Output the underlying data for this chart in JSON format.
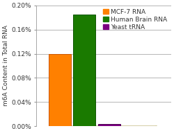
{
  "categories": [
    "MCF-7 RNA",
    "Human Brain RNA",
    "Yeast tRNA"
  ],
  "values": [
    0.0012,
    0.00185,
    3.5e-05
  ],
  "bar_colors": [
    "#FF8000",
    "#1A7A00",
    "#7B0080"
  ],
  "bar_edge_colors": [
    "#CC5500",
    "#0F5500",
    "#4B0050"
  ],
  "ylabel": "m6A Content in Total RNA",
  "ylim": [
    0,
    0.002
  ],
  "yticks": [
    0.0,
    0.0004,
    0.0008,
    0.0012,
    0.0016,
    0.002
  ],
  "ytick_labels": [
    "0.00%",
    "0.04%",
    "0.08%",
    "0.12%",
    "0.16%",
    "0.20%"
  ],
  "legend_labels": [
    "MCF-7 RNA",
    "Human Brain RNA",
    "Yeast tRNA"
  ],
  "legend_colors": [
    "#FF8000",
    "#1A7A00",
    "#7B0080"
  ],
  "floor_color": "#F0ECC0",
  "floor_edge_color": "#C8C090",
  "background_color": "#FFFFFF",
  "grid_color": "#AAAAAA",
  "bar_width": 0.38,
  "bar_positions": [
    1.0,
    1.42,
    1.84
  ],
  "label_fontsize": 6.5,
  "tick_fontsize": 6.5,
  "legend_fontsize": 6.5
}
